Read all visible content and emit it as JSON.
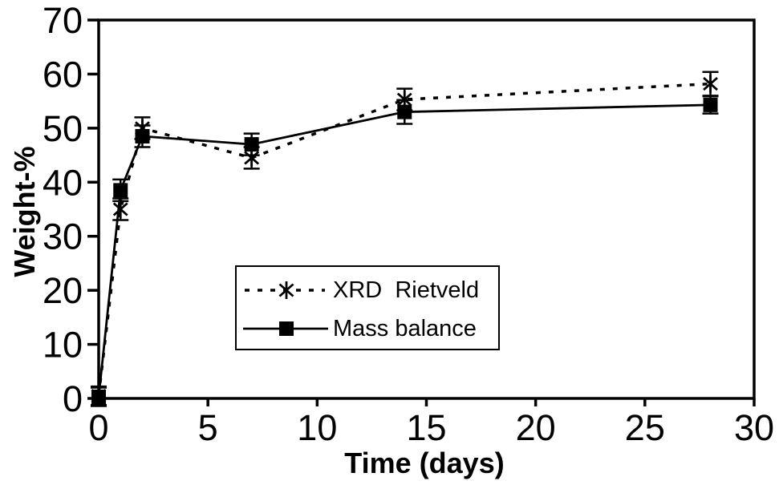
{
  "figure": {
    "background": "#ffffff",
    "ink": "#000000"
  },
  "chart_data": {
    "type": "line",
    "title": "",
    "xlabel": "Time (days)",
    "ylabel": "Weight-%",
    "xlim": [
      0,
      30
    ],
    "ylim": [
      0,
      70
    ],
    "xticks": [
      0,
      5,
      10,
      15,
      20,
      25,
      30
    ],
    "yticks": [
      0,
      10,
      20,
      30,
      40,
      50,
      60,
      70
    ],
    "grid": false,
    "legend_position": "inside-lower-center",
    "x": [
      0,
      1,
      2,
      7,
      14,
      28
    ],
    "series": [
      {
        "name": "XRD  Rietveld",
        "line_style": "dotted",
        "marker": "star-asterisk",
        "color": "#000000",
        "values": [
          0.5,
          35,
          50,
          44.5,
          55.3,
          58.2
        ],
        "errors": [
          1.7,
          2,
          2,
          2,
          2,
          2.2
        ]
      },
      {
        "name": "Mass balance",
        "line_style": "solid",
        "marker": "filled-square",
        "color": "#000000",
        "values": [
          0.3,
          38.5,
          48.5,
          47,
          53,
          54.3
        ],
        "errors": [
          1.7,
          2,
          2,
          2,
          2.2,
          1.6
        ]
      }
    ]
  }
}
